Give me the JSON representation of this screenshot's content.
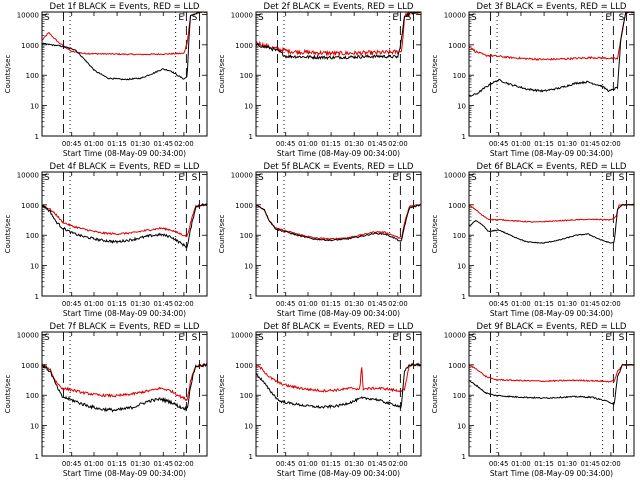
{
  "chart_data": {
    "type": "line",
    "panels": [
      {
        "title": "Det 1f BLACK = Events, RED = LLD",
        "black": [
          [
            0.0,
            1100
          ],
          [
            0.12,
            900
          ],
          [
            0.2,
            700
          ],
          [
            0.26,
            320
          ],
          [
            0.32,
            140
          ],
          [
            0.4,
            80
          ],
          [
            0.5,
            72
          ],
          [
            0.6,
            80
          ],
          [
            0.68,
            120
          ],
          [
            0.73,
            160
          ],
          [
            0.78,
            140
          ],
          [
            0.82,
            100
          ],
          [
            0.86,
            75
          ],
          [
            0.88,
            90
          ],
          [
            0.89,
            1500
          ],
          [
            0.9,
            9000
          ],
          [
            0.96,
            12000
          ],
          [
            1.0,
            12000
          ]
        ],
        "red": [
          [
            0.0,
            1400
          ],
          [
            0.04,
            2500
          ],
          [
            0.1,
            1200
          ],
          [
            0.18,
            600
          ],
          [
            0.26,
            520
          ],
          [
            0.4,
            500
          ],
          [
            0.6,
            480
          ],
          [
            0.75,
            500
          ],
          [
            0.86,
            520
          ],
          [
            0.88,
            1200
          ],
          [
            0.9,
            9000
          ],
          [
            0.96,
            12000
          ],
          [
            1.0,
            12000
          ]
        ],
        "noise_black": 0.02,
        "noise_red": 0.02
      },
      {
        "title": "Det 2f BLACK = Events, RED = LLD",
        "black": [
          [
            0.0,
            1000
          ],
          [
            0.08,
            800
          ],
          [
            0.14,
            600
          ],
          [
            0.18,
            420
          ],
          [
            0.3,
            400
          ],
          [
            0.45,
            380
          ],
          [
            0.6,
            400
          ],
          [
            0.75,
            420
          ],
          [
            0.86,
            400
          ],
          [
            0.88,
            1300
          ],
          [
            0.9,
            9000
          ],
          [
            0.96,
            12000
          ],
          [
            1.0,
            12000
          ]
        ],
        "red": [
          [
            0.0,
            1200
          ],
          [
            0.06,
            900
          ],
          [
            0.14,
            700
          ],
          [
            0.22,
            600
          ],
          [
            0.35,
            550
          ],
          [
            0.5,
            520
          ],
          [
            0.65,
            540
          ],
          [
            0.8,
            560
          ],
          [
            0.88,
            600
          ],
          [
            0.89,
            1500
          ],
          [
            0.9,
            9000
          ],
          [
            0.96,
            12000
          ],
          [
            1.0,
            12000
          ]
        ],
        "noise_black": 0.05,
        "noise_red": 0.07
      },
      {
        "title": "Det 3f BLACK = Events, RED = LLD",
        "black": [
          [
            0.0,
            20
          ],
          [
            0.05,
            25
          ],
          [
            0.1,
            40
          ],
          [
            0.14,
            55
          ],
          [
            0.18,
            70
          ],
          [
            0.25,
            50
          ],
          [
            0.35,
            35
          ],
          [
            0.45,
            30
          ],
          [
            0.55,
            38
          ],
          [
            0.65,
            55
          ],
          [
            0.72,
            60
          ],
          [
            0.8,
            45
          ],
          [
            0.85,
            30
          ],
          [
            0.88,
            35
          ],
          [
            0.9,
            40
          ],
          [
            0.92,
            1500
          ],
          [
            0.95,
            12000
          ],
          [
            1.0,
            12000
          ]
        ],
        "red": [
          [
            0.0,
            900
          ],
          [
            0.04,
            600
          ],
          [
            0.1,
            450
          ],
          [
            0.18,
            420
          ],
          [
            0.25,
            380
          ],
          [
            0.35,
            350
          ],
          [
            0.45,
            330
          ],
          [
            0.55,
            340
          ],
          [
            0.65,
            360
          ],
          [
            0.75,
            380
          ],
          [
            0.85,
            360
          ],
          [
            0.9,
            350
          ],
          [
            0.92,
            1500
          ],
          [
            0.95,
            12000
          ],
          [
            1.0,
            12000
          ]
        ],
        "noise_black": 0.03,
        "noise_red": 0.03
      },
      {
        "title": "Det 4f BLACK = Events, RED = LLD",
        "black": [
          [
            0.0,
            1000
          ],
          [
            0.05,
            600
          ],
          [
            0.08,
            300
          ],
          [
            0.12,
            180
          ],
          [
            0.18,
            120
          ],
          [
            0.25,
            90
          ],
          [
            0.35,
            70
          ],
          [
            0.45,
            60
          ],
          [
            0.55,
            72
          ],
          [
            0.65,
            95
          ],
          [
            0.72,
            105
          ],
          [
            0.78,
            90
          ],
          [
            0.84,
            55
          ],
          [
            0.88,
            40
          ],
          [
            0.9,
            150
          ],
          [
            0.93,
            800
          ],
          [
            0.96,
            1000
          ],
          [
            1.0,
            1000
          ]
        ],
        "red": [
          [
            0.0,
            1000
          ],
          [
            0.05,
            700
          ],
          [
            0.09,
            450
          ],
          [
            0.12,
            280
          ],
          [
            0.18,
            200
          ],
          [
            0.25,
            160
          ],
          [
            0.35,
            120
          ],
          [
            0.45,
            110
          ],
          [
            0.55,
            120
          ],
          [
            0.65,
            150
          ],
          [
            0.72,
            170
          ],
          [
            0.78,
            150
          ],
          [
            0.84,
            110
          ],
          [
            0.88,
            90
          ],
          [
            0.9,
            250
          ],
          [
            0.93,
            900
          ],
          [
            0.96,
            1000
          ],
          [
            1.0,
            1000
          ]
        ],
        "noise_black": 0.04,
        "noise_red": 0.03
      },
      {
        "title": "Det 5f BLACK = Events, RED = LLD",
        "black": [
          [
            0.0,
            1000
          ],
          [
            0.05,
            700
          ],
          [
            0.08,
            300
          ],
          [
            0.12,
            160
          ],
          [
            0.18,
            130
          ],
          [
            0.25,
            100
          ],
          [
            0.35,
            75
          ],
          [
            0.45,
            68
          ],
          [
            0.55,
            75
          ],
          [
            0.65,
            95
          ],
          [
            0.72,
            115
          ],
          [
            0.78,
            110
          ],
          [
            0.84,
            80
          ],
          [
            0.88,
            60
          ],
          [
            0.9,
            200
          ],
          [
            0.93,
            800
          ],
          [
            1.0,
            1000
          ]
        ],
        "red": [
          [
            0.0,
            1000
          ],
          [
            0.05,
            700
          ],
          [
            0.08,
            300
          ],
          [
            0.12,
            170
          ],
          [
            0.18,
            140
          ],
          [
            0.25,
            110
          ],
          [
            0.35,
            82
          ],
          [
            0.45,
            75
          ],
          [
            0.55,
            82
          ],
          [
            0.65,
            105
          ],
          [
            0.72,
            130
          ],
          [
            0.78,
            125
          ],
          [
            0.84,
            95
          ],
          [
            0.88,
            75
          ],
          [
            0.9,
            250
          ],
          [
            0.93,
            900
          ],
          [
            1.0,
            1000
          ]
        ],
        "noise_black": 0.02,
        "noise_red": 0.02
      },
      {
        "title": "Det 6f BLACK = Events, RED = LLD",
        "black": [
          [
            0.0,
            200
          ],
          [
            0.04,
            300
          ],
          [
            0.08,
            220
          ],
          [
            0.12,
            130
          ],
          [
            0.18,
            150
          ],
          [
            0.25,
            100
          ],
          [
            0.35,
            60
          ],
          [
            0.45,
            55
          ],
          [
            0.55,
            70
          ],
          [
            0.65,
            100
          ],
          [
            0.72,
            110
          ],
          [
            0.8,
            70
          ],
          [
            0.86,
            55
          ],
          [
            0.88,
            60
          ],
          [
            0.9,
            700
          ],
          [
            0.93,
            1000
          ],
          [
            1.0,
            1000
          ]
        ],
        "red": [
          [
            0.0,
            1000
          ],
          [
            0.04,
            700
          ],
          [
            0.08,
            450
          ],
          [
            0.12,
            330
          ],
          [
            0.2,
            320
          ],
          [
            0.3,
            290
          ],
          [
            0.4,
            270
          ],
          [
            0.5,
            290
          ],
          [
            0.6,
            310
          ],
          [
            0.7,
            330
          ],
          [
            0.8,
            330
          ],
          [
            0.86,
            320
          ],
          [
            0.89,
            400
          ],
          [
            0.91,
            1000
          ],
          [
            1.0,
            1000
          ]
        ],
        "noise_black": 0.015,
        "noise_red": 0.015
      },
      {
        "title": "Det 7f BLACK = Events, RED = LLD",
        "black": [
          [
            0.0,
            1000
          ],
          [
            0.05,
            600
          ],
          [
            0.08,
            250
          ],
          [
            0.12,
            90
          ],
          [
            0.18,
            70
          ],
          [
            0.25,
            50
          ],
          [
            0.35,
            35
          ],
          [
            0.45,
            32
          ],
          [
            0.55,
            40
          ],
          [
            0.65,
            65
          ],
          [
            0.72,
            75
          ],
          [
            0.78,
            60
          ],
          [
            0.84,
            40
          ],
          [
            0.88,
            35
          ],
          [
            0.9,
            200
          ],
          [
            0.93,
            900
          ],
          [
            1.0,
            1000
          ]
        ],
        "red": [
          [
            0.0,
            1000
          ],
          [
            0.05,
            700
          ],
          [
            0.08,
            300
          ],
          [
            0.12,
            170
          ],
          [
            0.18,
            150
          ],
          [
            0.25,
            120
          ],
          [
            0.35,
            100
          ],
          [
            0.45,
            95
          ],
          [
            0.55,
            110
          ],
          [
            0.65,
            140
          ],
          [
            0.72,
            170
          ],
          [
            0.78,
            140
          ],
          [
            0.84,
            90
          ],
          [
            0.88,
            70
          ],
          [
            0.9,
            300
          ],
          [
            0.93,
            900
          ],
          [
            1.0,
            1000
          ]
        ],
        "noise_black": 0.05,
        "noise_red": 0.04
      },
      {
        "title": "Det 8f BLACK = Events, RED = LLD",
        "black": [
          [
            0.0,
            500
          ],
          [
            0.04,
            300
          ],
          [
            0.08,
            150
          ],
          [
            0.14,
            65
          ],
          [
            0.2,
            55
          ],
          [
            0.3,
            45
          ],
          [
            0.4,
            40
          ],
          [
            0.5,
            45
          ],
          [
            0.58,
            60
          ],
          [
            0.64,
            80
          ],
          [
            0.72,
            75
          ],
          [
            0.8,
            55
          ],
          [
            0.86,
            45
          ],
          [
            0.88,
            40
          ],
          [
            0.9,
            600
          ],
          [
            0.93,
            1000
          ],
          [
            1.0,
            1000
          ]
        ],
        "red": [
          [
            0.0,
            1000
          ],
          [
            0.04,
            700
          ],
          [
            0.08,
            400
          ],
          [
            0.14,
            250
          ],
          [
            0.2,
            200
          ],
          [
            0.3,
            160
          ],
          [
            0.4,
            140
          ],
          [
            0.5,
            150
          ],
          [
            0.58,
            170
          ],
          [
            0.63,
            160
          ],
          [
            0.64,
            1000
          ],
          [
            0.65,
            160
          ],
          [
            0.72,
            170
          ],
          [
            0.78,
            165
          ],
          [
            0.86,
            140
          ],
          [
            0.9,
            150
          ],
          [
            0.93,
            1000
          ],
          [
            1.0,
            1000
          ]
        ],
        "noise_black": 0.04,
        "noise_red": 0.04
      },
      {
        "title": "Det 9f BLACK = Events, RED = LLD",
        "black": [
          [
            0.0,
            300
          ],
          [
            0.05,
            200
          ],
          [
            0.1,
            120
          ],
          [
            0.15,
            100
          ],
          [
            0.25,
            90
          ],
          [
            0.35,
            85
          ],
          [
            0.45,
            80
          ],
          [
            0.55,
            85
          ],
          [
            0.65,
            90
          ],
          [
            0.75,
            85
          ],
          [
            0.85,
            60
          ],
          [
            0.88,
            50
          ],
          [
            0.9,
            400
          ],
          [
            0.93,
            1000
          ],
          [
            1.0,
            1000
          ]
        ],
        "red": [
          [
            0.0,
            1000
          ],
          [
            0.05,
            700
          ],
          [
            0.1,
            420
          ],
          [
            0.15,
            330
          ],
          [
            0.25,
            310
          ],
          [
            0.35,
            300
          ],
          [
            0.45,
            290
          ],
          [
            0.55,
            300
          ],
          [
            0.65,
            310
          ],
          [
            0.75,
            300
          ],
          [
            0.85,
            280
          ],
          [
            0.88,
            290
          ],
          [
            0.9,
            600
          ],
          [
            0.93,
            1000
          ],
          [
            1.0,
            1000
          ]
        ],
        "noise_black": 0.02,
        "noise_red": 0.02
      }
    ],
    "y_label": "Counts/sec",
    "x_label": "Start Time (08-May-09 00:34:00)",
    "y_ticks": [
      "1",
      "10",
      "100",
      "1000",
      "10000"
    ],
    "x_ticks": [
      "00:45",
      "01:00",
      "01:15",
      "01:30",
      "01:45",
      "02:00"
    ],
    "marker_left": "S",
    "marker_right_e": "E",
    "marker_right_s": "S",
    "log_scale": true,
    "colors": {
      "events": "#000000",
      "lld": "#e00000"
    }
  }
}
